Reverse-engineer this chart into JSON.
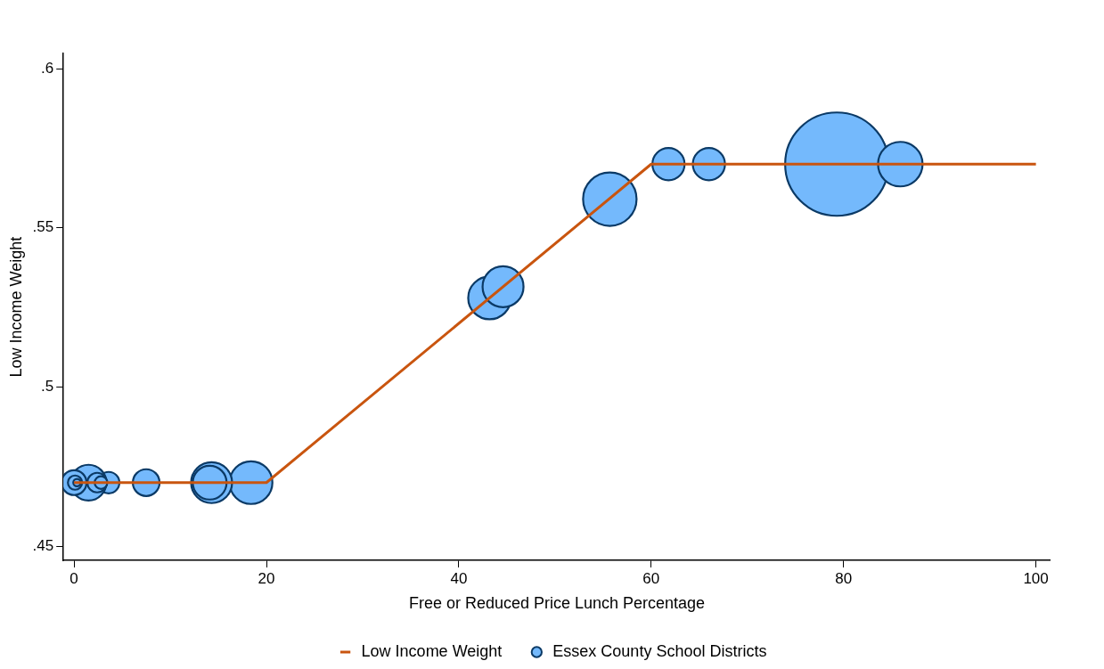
{
  "chart_data": {
    "type": "bubble",
    "xlabel": "Free or Reduced Price Lunch Percentage",
    "ylabel": "Low Income Weight",
    "xlim": [
      -1.1,
      101.5
    ],
    "xticks": [
      0,
      20,
      40,
      60,
      80,
      100
    ],
    "ylim": [
      0.4456,
      0.6047
    ],
    "yticks": [
      {
        "value": 0.45,
        "label": ".45"
      },
      {
        "value": 0.5,
        "label": ".5"
      },
      {
        "value": 0.55,
        "label": ".55"
      },
      {
        "value": 0.6,
        "label": ".6"
      }
    ],
    "grid": false,
    "legend": "bottom",
    "series": [
      {
        "name": "Low Income Weight",
        "type": "line",
        "color": "#c9550f",
        "marker": "none",
        "line_style": "solid",
        "x": [
          0,
          20,
          60,
          100
        ],
        "values": [
          0.47,
          0.47,
          0.57,
          0.57
        ]
      },
      {
        "name": "Essex County School Districts",
        "color": "#74b9fc",
        "marker": "circle",
        "x": [
          79.3,
          85.9,
          66.0,
          61.8,
          55.7,
          43.2,
          44.6,
          18.4,
          14.3,
          14.1,
          7.5,
          3.6,
          1.5,
          2.4,
          2.8,
          0.0,
          0.1,
          0.3
        ],
        "values": [
          0.57,
          0.57,
          0.57,
          0.57,
          0.559,
          0.528,
          0.5315,
          0.47,
          0.47,
          0.47,
          0.47,
          0.47,
          0.47,
          0.47,
          0.47,
          0.47,
          0.47,
          0.47
        ],
        "sizes": [
          1,
          0.186,
          0.097,
          0.097,
          0.268,
          0.171,
          0.157,
          0.171,
          0.157,
          0.107,
          0.067,
          0.043,
          0.119,
          0.036,
          0.015,
          0.058,
          0.019,
          0.005
        ]
      }
    ]
  }
}
